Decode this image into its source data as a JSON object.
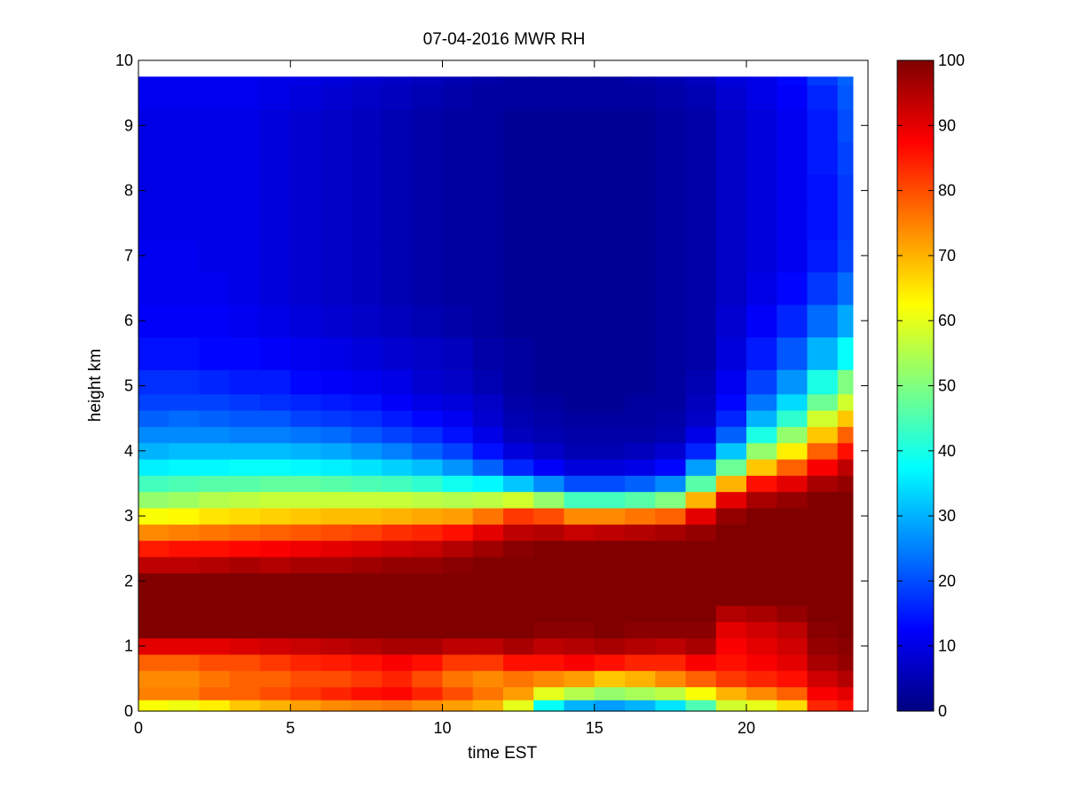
{
  "chart_data": {
    "type": "heatmap",
    "title": "07-04-2016 MWR RH",
    "xlabel": "time EST",
    "ylabel": "height km",
    "xlim": [
      0,
      24
    ],
    "ylim": [
      0,
      10
    ],
    "x_ticks": [
      0,
      5,
      10,
      15,
      20
    ],
    "y_ticks": [
      0,
      1,
      2,
      3,
      4,
      5,
      6,
      7,
      8,
      9,
      10
    ],
    "colorbar": {
      "colormap": "jet",
      "clim": [
        0,
        100
      ],
      "ticks": [
        0,
        10,
        20,
        30,
        40,
        50,
        60,
        70,
        80,
        90,
        100
      ]
    },
    "time_hours": [
      0.5,
      1.5,
      2.5,
      3.5,
      4.5,
      5.5,
      6.5,
      7.5,
      8.5,
      9.5,
      10.5,
      11.5,
      12.5,
      13.5,
      14.5,
      15.5,
      16.5,
      17.5,
      18.5,
      19.5,
      20.5,
      21.5,
      22.5,
      23.5
    ],
    "heights_km": [
      0.1,
      0.25,
      0.5,
      0.75,
      1.0,
      1.25,
      1.5,
      1.75,
      2.0,
      2.25,
      2.5,
      2.75,
      3.0,
      3.25,
      3.5,
      3.75,
      4.0,
      4.25,
      4.5,
      4.75,
      5.0,
      5.5,
      6.0,
      6.5,
      7.0,
      7.5,
      8.0,
      8.5,
      9.0,
      9.5,
      9.75
    ],
    "rh_percent": [
      [
        62,
        75,
        74,
        78,
        90,
        100,
        100,
        100,
        100,
        94,
        85,
        74,
        62,
        52,
        44,
        36,
        30,
        26,
        22,
        19,
        17,
        14,
        12,
        11,
        11,
        10,
        10,
        10,
        10,
        11,
        11
      ],
      [
        61,
        75,
        74,
        78,
        90,
        100,
        100,
        100,
        100,
        94,
        86,
        75,
        63,
        53,
        45,
        37,
        31,
        26,
        23,
        19,
        17,
        14,
        12,
        11,
        11,
        10,
        10,
        10,
        10,
        11,
        11
      ],
      [
        64,
        78,
        76,
        80,
        90,
        100,
        100,
        100,
        100,
        95,
        86,
        76,
        65,
        55,
        46,
        37,
        31,
        26,
        22,
        19,
        16,
        13,
        12,
        11,
        10,
        10,
        10,
        10,
        10,
        11,
        11
      ],
      [
        68,
        78,
        78,
        80,
        91,
        100,
        100,
        100,
        100,
        96,
        87,
        77,
        66,
        56,
        46,
        38,
        31,
        25,
        21,
        18,
        15,
        13,
        11,
        10,
        10,
        10,
        10,
        10,
        10,
        11,
        11
      ],
      [
        70,
        80,
        78,
        82,
        92,
        100,
        100,
        100,
        100,
        95,
        88,
        78,
        67,
        57,
        47,
        38,
        31,
        25,
        21,
        17,
        15,
        12,
        10,
        9,
        9,
        9,
        9,
        9,
        9,
        10,
        10
      ],
      [
        72,
        82,
        80,
        84,
        93,
        100,
        100,
        100,
        100,
        96,
        89,
        79,
        68,
        57,
        47,
        37,
        30,
        24,
        19,
        16,
        13,
        11,
        9,
        8,
        8,
        8,
        8,
        8,
        8,
        9,
        10
      ],
      [
        74,
        84,
        80,
        85,
        94,
        100,
        100,
        100,
        100,
        96,
        90,
        80,
        69,
        57,
        46,
        36,
        29,
        23,
        18,
        15,
        12,
        10,
        8,
        7,
        7,
        7,
        7,
        7,
        7,
        8,
        9
      ],
      [
        75,
        86,
        82,
        86,
        95,
        100,
        100,
        100,
        100,
        97,
        91,
        81,
        69,
        57,
        45,
        35,
        27,
        21,
        17,
        14,
        11,
        9,
        7,
        6,
        6,
        6,
        6,
        6,
        6,
        7,
        8
      ],
      [
        76,
        87,
        84,
        88,
        96,
        100,
        100,
        100,
        100,
        98,
        92,
        83,
        70,
        57,
        44,
        33,
        25,
        19,
        15,
        12,
        10,
        8,
        6,
        5,
        5,
        5,
        5,
        5,
        5,
        6,
        7
      ],
      [
        74,
        84,
        80,
        86,
        96,
        100,
        100,
        100,
        100,
        98,
        93,
        84,
        71,
        56,
        42,
        31,
        22,
        17,
        13,
        10,
        8,
        7,
        5,
        4,
        4,
        4,
        4,
        4,
        4,
        5,
        6
      ],
      [
        72,
        80,
        76,
        82,
        94,
        100,
        100,
        100,
        100,
        99,
        95,
        86,
        72,
        55,
        39,
        27,
        19,
        14,
        11,
        9,
        7,
        6,
        4,
        3,
        3,
        3,
        3,
        3,
        3,
        4,
        5
      ],
      [
        70,
        76,
        74,
        82,
        94,
        100,
        100,
        100,
        100,
        100,
        97,
        90,
        76,
        56,
        37,
        22,
        14,
        10,
        8,
        7,
        5,
        4,
        3,
        3,
        3,
        3,
        3,
        3,
        3,
        3,
        4
      ],
      [
        60,
        72,
        76,
        86,
        96,
        100,
        100,
        100,
        100,
        100,
        99,
        94,
        82,
        58,
        32,
        16,
        9,
        6,
        5,
        4,
        3,
        3,
        2,
        2,
        2,
        2,
        2,
        2,
        2,
        3,
        3
      ],
      [
        38,
        60,
        74,
        86,
        94,
        99,
        100,
        100,
        100,
        100,
        100,
        95,
        80,
        52,
        26,
        12,
        7,
        5,
        4,
        3,
        2,
        2,
        2,
        2,
        2,
        2,
        2,
        2,
        2,
        3,
        3
      ],
      [
        30,
        55,
        72,
        88,
        95,
        99,
        100,
        100,
        100,
        100,
        100,
        93,
        74,
        44,
        20,
        9,
        5,
        4,
        3,
        2,
        2,
        2,
        2,
        2,
        2,
        2,
        2,
        2,
        2,
        3,
        3
      ],
      [
        28,
        52,
        68,
        86,
        96,
        100,
        100,
        100,
        100,
        100,
        100,
        94,
        74,
        44,
        20,
        9,
        5,
        4,
        3,
        2,
        2,
        2,
        2,
        2,
        2,
        2,
        2,
        2,
        2,
        3,
        3
      ],
      [
        30,
        54,
        70,
        84,
        95,
        99,
        100,
        100,
        100,
        100,
        100,
        95,
        76,
        46,
        22,
        10,
        6,
        4,
        3,
        3,
        2,
        2,
        2,
        2,
        2,
        2,
        2,
        2,
        2,
        3,
        4
      ],
      [
        35,
        56,
        74,
        84,
        94,
        99,
        100,
        100,
        100,
        100,
        100,
        96,
        78,
        50,
        26,
        13,
        8,
        5,
        4,
        3,
        3,
        3,
        3,
        3,
        3,
        3,
        3,
        3,
        3,
        4,
        5
      ],
      [
        45,
        62,
        78,
        88,
        96,
        99,
        100,
        100,
        100,
        100,
        100,
        98,
        90,
        70,
        46,
        28,
        16,
        10,
        7,
        6,
        5,
        4,
        4,
        4,
        4,
        4,
        4,
        4,
        4,
        5,
        6
      ],
      [
        58,
        70,
        82,
        86,
        88,
        90,
        95,
        100,
        100,
        100,
        100,
        100,
        98,
        90,
        70,
        48,
        32,
        22,
        16,
        13,
        11,
        9,
        8,
        7,
        7,
        7,
        7,
        7,
        7,
        8,
        9
      ],
      [
        60,
        74,
        84,
        88,
        90,
        92,
        96,
        100,
        100,
        100,
        100,
        100,
        100,
        96,
        86,
        68,
        52,
        40,
        30,
        24,
        19,
        15,
        12,
        10,
        9,
        9,
        9,
        9,
        9,
        10,
        10
      ],
      [
        66,
        78,
        86,
        90,
        92,
        94,
        98,
        100,
        100,
        100,
        100,
        100,
        100,
        98,
        90,
        78,
        64,
        52,
        42,
        34,
        27,
        21,
        16,
        13,
        11,
        11,
        11,
        11,
        11,
        12,
        13
      ],
      [
        84,
        88,
        92,
        96,
        98,
        99,
        100,
        100,
        100,
        100,
        100,
        100,
        100,
        100,
        96,
        88,
        78,
        68,
        58,
        48,
        40,
        30,
        23,
        18,
        15,
        14,
        14,
        15,
        15,
        16,
        18
      ],
      [
        86,
        90,
        95,
        98,
        99,
        100,
        100,
        100,
        100,
        100,
        100,
        100,
        100,
        100,
        98,
        94,
        86,
        78,
        68,
        58,
        50,
        38,
        29,
        23,
        19,
        18,
        18,
        19,
        20,
        21,
        22
      ]
    ]
  }
}
